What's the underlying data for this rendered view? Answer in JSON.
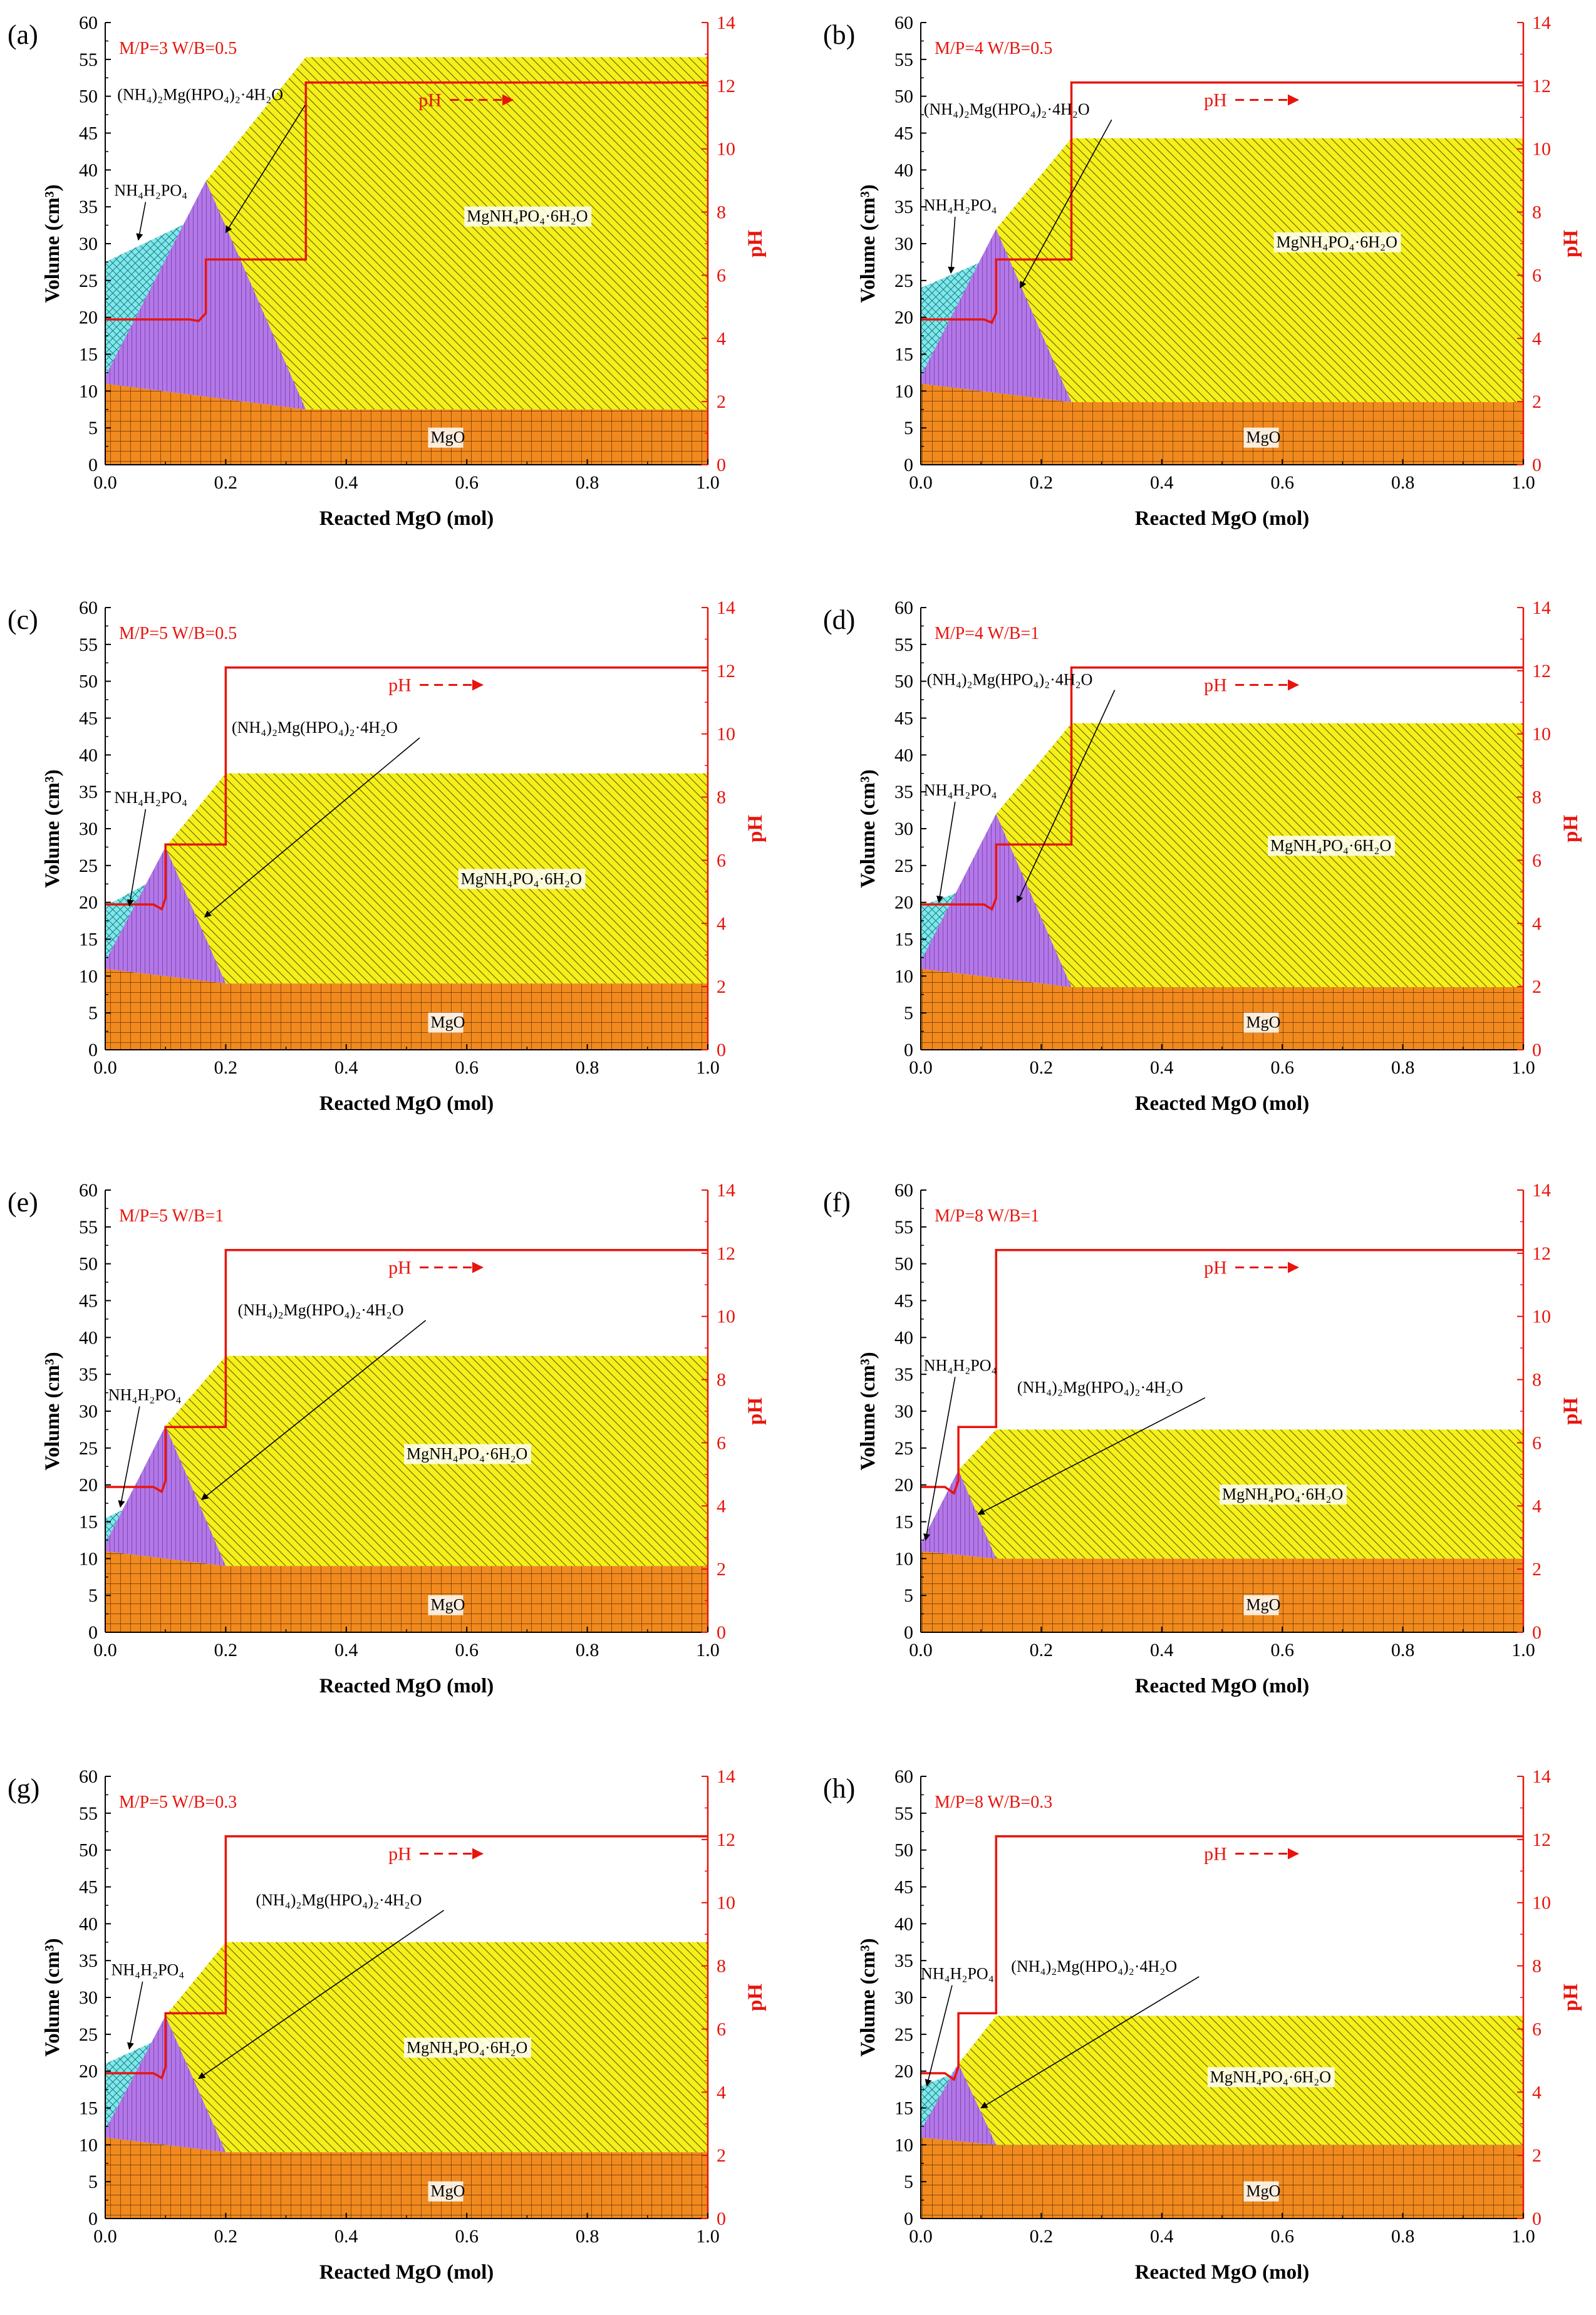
{
  "figure": {
    "colors": {
      "mgo": "#F08A1E",
      "mgo_grid": "#6B3300",
      "struvite": "#F5F01A",
      "struvite_hatch": "#6E6A00",
      "dittmarite": "#B377E8",
      "dittmarite_hatch": "#5B2B8F",
      "adp": "#7EE8EC",
      "adp_hatch": "#227C80",
      "ph_line": "#E8140C",
      "axis": "#000000"
    },
    "labels": {
      "xlabel": "Reacted MgO (mol)",
      "ylabel": "Volume (cm³)",
      "ylabel_right": "pH",
      "ph_legend": "pH",
      "mgo": "MgO",
      "struvite": "MgNH₄PO₄·6H₂O",
      "dittmarite": "(NH₄)₂Mg(HPO₄)₂·4H₂O",
      "adp": "NH₄H₂PO₄"
    }
  },
  "chart_data": [
    {
      "type": "area",
      "panel_label": "(a)",
      "condition": "M/P=3 W/B=0.5",
      "xlim": [
        0,
        1
      ],
      "ylim": [
        0,
        60
      ],
      "y2lim": [
        0,
        14
      ],
      "xticks": [
        "0.0",
        "0.2",
        "0.4",
        "0.6",
        "0.8",
        "1.0"
      ],
      "yticks": [
        0,
        5,
        10,
        15,
        20,
        25,
        30,
        35,
        40,
        45,
        50,
        55,
        60
      ],
      "y2ticks": [
        0,
        2,
        4,
        6,
        8,
        10,
        12,
        14
      ],
      "mgo": {
        "x": [
          0,
          0.333
        ],
        "y": [
          11,
          7.5
        ]
      },
      "adp": {
        "x": [
          0,
          0.14
        ],
        "y_top": [
          27.5,
          33
        ]
      },
      "dittmarite": {
        "peak": [
          0.167,
          38.5
        ],
        "left_base": 12,
        "end": 0.333
      },
      "struvite": {
        "top": 55.3,
        "rise_start": [
          0.167,
          38.5
        ],
        "rise_end": [
          0.333,
          55.3
        ]
      },
      "ph": {
        "x": [
          0,
          0.14,
          0.155,
          0.167,
          0.167,
          0.333,
          0.333,
          1.0
        ],
        "y": [
          4.6,
          4.6,
          4.55,
          4.8,
          6.5,
          6.5,
          12.1,
          12.1
        ]
      },
      "ph_legend_at": [
        0.52,
        49.5
      ],
      "annotations": [
        {
          "key": "dittmarite",
          "text_at": [
            0.02,
            49.5
          ],
          "arrow_to": [
            0.2,
            31.5
          ]
        },
        {
          "key": "adp",
          "text_at": [
            0.015,
            36.5
          ],
          "arrow_to": [
            0.055,
            30.5
          ]
        },
        {
          "key": "struvite",
          "text_at": [
            0.6,
            33
          ],
          "arrow_to": null
        },
        {
          "key": "mgo",
          "text_at": [
            0.54,
            3
          ],
          "arrow_to": null
        }
      ]
    },
    {
      "type": "area",
      "panel_label": "(b)",
      "condition": "M/P=4 W/B=0.5",
      "xlim": [
        0,
        1
      ],
      "ylim": [
        0,
        60
      ],
      "y2lim": [
        0,
        14
      ],
      "xticks": [
        "0.0",
        "0.2",
        "0.4",
        "0.6",
        "0.8",
        "1.0"
      ],
      "yticks": [
        0,
        5,
        10,
        15,
        20,
        25,
        30,
        35,
        40,
        45,
        50,
        55,
        60
      ],
      "y2ticks": [
        0,
        2,
        4,
        6,
        8,
        10,
        12,
        14
      ],
      "mgo": {
        "x": [
          0,
          0.25
        ],
        "y": [
          11,
          8.5
        ]
      },
      "adp": {
        "x": [
          0,
          0.1
        ],
        "y_top": [
          24,
          27.5
        ]
      },
      "dittmarite": {
        "peak": [
          0.125,
          32
        ],
        "left_base": 12,
        "end": 0.25
      },
      "struvite": {
        "top": 44.3,
        "rise_start": [
          0.125,
          32
        ],
        "rise_end": [
          0.25,
          44.3
        ]
      },
      "ph": {
        "x": [
          0,
          0.105,
          0.118,
          0.125,
          0.125,
          0.25,
          0.25,
          1.0
        ],
        "y": [
          4.6,
          4.6,
          4.5,
          4.8,
          6.5,
          6.5,
          12.1,
          12.1
        ]
      },
      "ph_legend_at": [
        0.47,
        49.5
      ],
      "annotations": [
        {
          "key": "dittmarite",
          "text_at": [
            0.005,
            47.5
          ],
          "arrow_to": [
            0.165,
            24
          ]
        },
        {
          "key": "adp",
          "text_at": [
            0.005,
            34.5
          ],
          "arrow_to": [
            0.05,
            26
          ]
        },
        {
          "key": "struvite",
          "text_at": [
            0.59,
            29.5
          ],
          "arrow_to": null
        },
        {
          "key": "mgo",
          "text_at": [
            0.54,
            3
          ],
          "arrow_to": null
        }
      ]
    },
    {
      "type": "area",
      "panel_label": "(c)",
      "condition": "M/P=5 W/B=0.5",
      "xlim": [
        0,
        1
      ],
      "ylim": [
        0,
        60
      ],
      "y2lim": [
        0,
        14
      ],
      "xticks": [
        "0.0",
        "0.2",
        "0.4",
        "0.6",
        "0.8",
        "1.0"
      ],
      "yticks": [
        0,
        5,
        10,
        15,
        20,
        25,
        30,
        35,
        40,
        45,
        50,
        55,
        60
      ],
      "y2ticks": [
        0,
        2,
        4,
        6,
        8,
        10,
        12,
        14
      ],
      "mgo": {
        "x": [
          0,
          0.2
        ],
        "y": [
          11,
          9
        ]
      },
      "adp": {
        "x": [
          0,
          0.08
        ],
        "y_top": [
          19.5,
          23
        ]
      },
      "dittmarite": {
        "peak": [
          0.1,
          27.5
        ],
        "left_base": 12,
        "end": 0.2
      },
      "struvite": {
        "top": 37.5,
        "rise_start": [
          0.1,
          27.5
        ],
        "rise_end": [
          0.2,
          37.5
        ]
      },
      "ph": {
        "x": [
          0,
          0.08,
          0.094,
          0.1,
          0.1,
          0.2,
          0.2,
          1.0
        ],
        "y": [
          4.6,
          4.6,
          4.45,
          4.8,
          6.5,
          6.5,
          12.1,
          12.1
        ]
      },
      "ph_legend_at": [
        0.47,
        49.5
      ],
      "annotations": [
        {
          "key": "dittmarite",
          "text_at": [
            0.21,
            43
          ],
          "arrow_to": [
            0.165,
            18
          ]
        },
        {
          "key": "adp",
          "text_at": [
            0.015,
            33.5
          ],
          "arrow_to": [
            0.04,
            19.5
          ]
        },
        {
          "key": "struvite",
          "text_at": [
            0.59,
            22.5
          ],
          "arrow_to": null
        },
        {
          "key": "mgo",
          "text_at": [
            0.54,
            3
          ],
          "arrow_to": null
        }
      ]
    },
    {
      "type": "area",
      "panel_label": "(d)",
      "condition": "M/P=4 W/B=1",
      "xlim": [
        0,
        1
      ],
      "ylim": [
        0,
        60
      ],
      "y2lim": [
        0,
        14
      ],
      "xticks": [
        "0.0",
        "0.2",
        "0.4",
        "0.6",
        "0.8",
        "1.0"
      ],
      "yticks": [
        0,
        5,
        10,
        15,
        20,
        25,
        30,
        35,
        40,
        45,
        50,
        55,
        60
      ],
      "y2ticks": [
        0,
        2,
        4,
        6,
        8,
        10,
        12,
        14
      ],
      "mgo": {
        "x": [
          0,
          0.25
        ],
        "y": [
          11,
          8.5
        ]
      },
      "adp": {
        "x": [
          0,
          0.1
        ],
        "y_top": [
          19.5,
          22.5
        ]
      },
      "dittmarite": {
        "peak": [
          0.125,
          32
        ],
        "left_base": 12,
        "end": 0.25
      },
      "struvite": {
        "top": 44.3,
        "rise_start": [
          0.125,
          32
        ],
        "rise_end": [
          0.25,
          44.3
        ]
      },
      "ph": {
        "x": [
          0,
          0.105,
          0.118,
          0.125,
          0.125,
          0.25,
          0.25,
          1.0
        ],
        "y": [
          4.6,
          4.6,
          4.45,
          4.8,
          6.5,
          6.5,
          12.1,
          12.1
        ]
      },
      "ph_legend_at": [
        0.47,
        49.5
      ],
      "annotations": [
        {
          "key": "dittmarite",
          "text_at": [
            0.01,
            49.5
          ],
          "arrow_to": [
            0.16,
            20
          ]
        },
        {
          "key": "adp",
          "text_at": [
            0.005,
            34.5
          ],
          "arrow_to": [
            0.03,
            20
          ]
        },
        {
          "key": "struvite",
          "text_at": [
            0.58,
            27
          ],
          "arrow_to": null
        },
        {
          "key": "mgo",
          "text_at": [
            0.54,
            3
          ],
          "arrow_to": null
        }
      ]
    },
    {
      "type": "area",
      "panel_label": "(e)",
      "condition": "M/P=5 W/B=1",
      "xlim": [
        0,
        1
      ],
      "ylim": [
        0,
        60
      ],
      "y2lim": [
        0,
        14
      ],
      "xticks": [
        "0.0",
        "0.2",
        "0.4",
        "0.6",
        "0.8",
        "1.0"
      ],
      "yticks": [
        0,
        5,
        10,
        15,
        20,
        25,
        30,
        35,
        40,
        45,
        50,
        55,
        60
      ],
      "y2ticks": [
        0,
        2,
        4,
        6,
        8,
        10,
        12,
        14
      ],
      "mgo": {
        "x": [
          0,
          0.2
        ],
        "y": [
          11,
          9
        ]
      },
      "adp": {
        "x": [
          0,
          0.08
        ],
        "y_top": [
          15.5,
          18.5
        ]
      },
      "dittmarite": {
        "peak": [
          0.1,
          28
        ],
        "left_base": 12,
        "end": 0.2
      },
      "struvite": {
        "top": 37.5,
        "rise_start": [
          0.1,
          28
        ],
        "rise_end": [
          0.2,
          37.5
        ]
      },
      "ph": {
        "x": [
          0,
          0.08,
          0.094,
          0.1,
          0.1,
          0.2,
          0.2,
          1.0
        ],
        "y": [
          4.6,
          4.6,
          4.45,
          4.8,
          6.5,
          6.5,
          12.1,
          12.1
        ]
      },
      "ph_legend_at": [
        0.47,
        49.5
      ],
      "annotations": [
        {
          "key": "dittmarite",
          "text_at": [
            0.22,
            43
          ],
          "arrow_to": [
            0.16,
            18
          ]
        },
        {
          "key": "adp",
          "text_at": [
            0.005,
            31.5
          ],
          "arrow_to": [
            0.025,
            17
          ]
        },
        {
          "key": "struvite",
          "text_at": [
            0.5,
            23.5
          ],
          "arrow_to": null
        },
        {
          "key": "mgo",
          "text_at": [
            0.54,
            3
          ],
          "arrow_to": null
        }
      ]
    },
    {
      "type": "area",
      "panel_label": "(f)",
      "condition": "M/P=8 W/B=1",
      "xlim": [
        0,
        1
      ],
      "ylim": [
        0,
        60
      ],
      "y2lim": [
        0,
        14
      ],
      "xticks": [
        "0.0",
        "0.2",
        "0.4",
        "0.6",
        "0.8",
        "1.0"
      ],
      "yticks": [
        0,
        5,
        10,
        15,
        20,
        25,
        30,
        35,
        40,
        45,
        50,
        55,
        60
      ],
      "y2ticks": [
        0,
        2,
        4,
        6,
        8,
        10,
        12,
        14
      ],
      "mgo": {
        "x": [
          0,
          0.125
        ],
        "y": [
          11,
          10
        ]
      },
      "adp": {
        "x": [
          0,
          0.05
        ],
        "y_top": [
          12,
          14.5
        ]
      },
      "dittmarite": {
        "peak": [
          0.0625,
          22
        ],
        "left_base": 12,
        "end": 0.125
      },
      "struvite": {
        "top": 27.5,
        "rise_start": [
          0.0625,
          22
        ],
        "rise_end": [
          0.125,
          27.5
        ]
      },
      "ph": {
        "x": [
          0,
          0.04,
          0.055,
          0.0625,
          0.0625,
          0.125,
          0.125,
          1.0
        ],
        "y": [
          4.6,
          4.6,
          4.4,
          4.8,
          6.5,
          6.5,
          12.1,
          12.1
        ]
      },
      "ph_legend_at": [
        0.47,
        49.5
      ],
      "annotations": [
        {
          "key": "dittmarite",
          "text_at": [
            0.16,
            32.5
          ],
          "arrow_to": [
            0.095,
            16
          ]
        },
        {
          "key": "adp",
          "text_at": [
            0.005,
            35.5
          ],
          "arrow_to": [
            0.008,
            12.5
          ]
        },
        {
          "key": "struvite",
          "text_at": [
            0.5,
            18
          ],
          "arrow_to": null
        },
        {
          "key": "mgo",
          "text_at": [
            0.54,
            3
          ],
          "arrow_to": null
        }
      ]
    },
    {
      "type": "area",
      "panel_label": "(g)",
      "condition": "M/P=5 W/B=0.3",
      "xlim": [
        0,
        1
      ],
      "ylim": [
        0,
        60
      ],
      "y2lim": [
        0,
        14
      ],
      "xticks": [
        "0.0",
        "0.2",
        "0.4",
        "0.6",
        "0.8",
        "1.0"
      ],
      "yticks": [
        0,
        5,
        10,
        15,
        20,
        25,
        30,
        35,
        40,
        45,
        50,
        55,
        60
      ],
      "y2ticks": [
        0,
        2,
        4,
        6,
        8,
        10,
        12,
        14
      ],
      "mgo": {
        "x": [
          0,
          0.2
        ],
        "y": [
          11,
          9
        ]
      },
      "adp": {
        "x": [
          0,
          0.08
        ],
        "y_top": [
          21,
          24
        ]
      },
      "dittmarite": {
        "peak": [
          0.1,
          27.5
        ],
        "left_base": 12,
        "end": 0.2
      },
      "struvite": {
        "top": 37.5,
        "rise_start": [
          0.1,
          27.5
        ],
        "rise_end": [
          0.2,
          37.5
        ]
      },
      "ph": {
        "x": [
          0,
          0.08,
          0.094,
          0.1,
          0.1,
          0.2,
          0.2,
          1.0
        ],
        "y": [
          4.6,
          4.6,
          4.45,
          4.8,
          6.5,
          6.5,
          12.1,
          12.1
        ]
      },
      "ph_legend_at": [
        0.47,
        49.5
      ],
      "annotations": [
        {
          "key": "dittmarite",
          "text_at": [
            0.25,
            42.5
          ],
          "arrow_to": [
            0.155,
            19
          ]
        },
        {
          "key": "adp",
          "text_at": [
            0.01,
            33
          ],
          "arrow_to": [
            0.04,
            23
          ]
        },
        {
          "key": "struvite",
          "text_at": [
            0.5,
            22.5
          ],
          "arrow_to": null
        },
        {
          "key": "mgo",
          "text_at": [
            0.54,
            3
          ],
          "arrow_to": null
        }
      ]
    },
    {
      "type": "area",
      "panel_label": "(h)",
      "condition": "M/P=8 W/B=0.3",
      "xlim": [
        0,
        1
      ],
      "ylim": [
        0,
        60
      ],
      "y2lim": [
        0,
        14
      ],
      "xticks": [
        "0.0",
        "0.2",
        "0.4",
        "0.6",
        "0.8",
        "1.0"
      ],
      "yticks": [
        0,
        5,
        10,
        15,
        20,
        25,
        30,
        35,
        40,
        45,
        50,
        55,
        60
      ],
      "y2ticks": [
        0,
        2,
        4,
        6,
        8,
        10,
        12,
        14
      ],
      "mgo": {
        "x": [
          0,
          0.125
        ],
        "y": [
          11,
          10
        ]
      },
      "adp": {
        "x": [
          0,
          0.05
        ],
        "y_top": [
          18,
          19.5
        ]
      },
      "dittmarite": {
        "peak": [
          0.0625,
          21
        ],
        "left_base": 12,
        "end": 0.125
      },
      "struvite": {
        "top": 27.5,
        "rise_start": [
          0.0625,
          21
        ],
        "rise_end": [
          0.125,
          27.5
        ]
      },
      "ph": {
        "x": [
          0,
          0.04,
          0.055,
          0.0625,
          0.0625,
          0.125,
          0.125,
          1.0
        ],
        "y": [
          4.6,
          4.6,
          4.4,
          4.8,
          6.5,
          6.5,
          12.1,
          12.1
        ]
      },
      "ph_legend_at": [
        0.47,
        49.5
      ],
      "annotations": [
        {
          "key": "dittmarite",
          "text_at": [
            0.15,
            33.5
          ],
          "arrow_to": [
            0.1,
            15
          ]
        },
        {
          "key": "adp",
          "text_at": [
            0.0,
            32.5
          ],
          "arrow_to": [
            0.01,
            18
          ]
        },
        {
          "key": "struvite",
          "text_at": [
            0.48,
            18.5
          ],
          "arrow_to": null
        },
        {
          "key": "mgo",
          "text_at": [
            0.54,
            3
          ],
          "arrow_to": null
        }
      ]
    }
  ]
}
